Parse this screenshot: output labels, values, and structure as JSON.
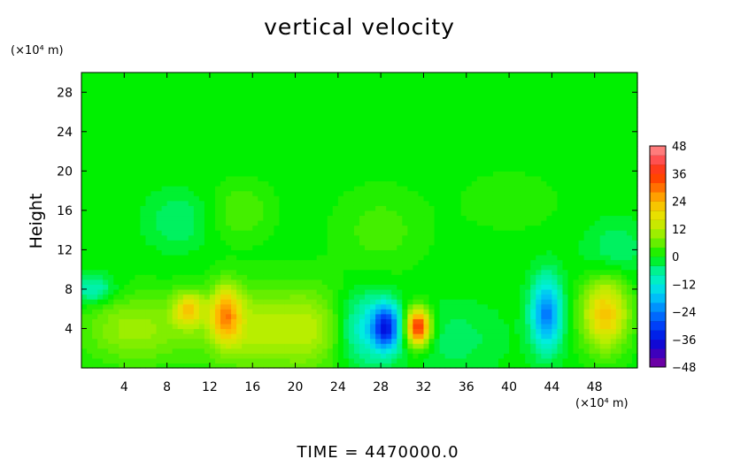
{
  "chart_data": {
    "type": "heatmap",
    "title": "vertical velocity",
    "ylabel": "Height",
    "y_unit": "(×10⁴ m)",
    "x_unit": "(×10⁴ m)",
    "footer": "TIME  =  4470000.0",
    "xlim": [
      0,
      52
    ],
    "ylim": [
      0,
      30
    ],
    "x_ticks": [
      4,
      8,
      12,
      16,
      20,
      24,
      28,
      32,
      36,
      40,
      44,
      48
    ],
    "y_ticks": [
      4,
      8,
      12,
      16,
      20,
      24,
      28
    ],
    "x_tick_labels": [
      "4",
      "8",
      "12",
      "16",
      "20",
      "24",
      "28",
      "32",
      "36",
      "40",
      "44",
      "48"
    ],
    "y_tick_labels": [
      "4",
      "8",
      "12",
      "16",
      "20",
      "24",
      "28"
    ],
    "colorbar": {
      "min": -48,
      "max": 48,
      "step": 4,
      "tick_values": [
        48,
        36,
        24,
        12,
        0,
        -12,
        -24,
        -36,
        -48
      ],
      "tick_labels": [
        "48",
        "36",
        "24",
        "12",
        "0",
        "−12",
        "−24",
        "−36",
        "−48"
      ]
    },
    "background_value": 0,
    "features": [
      {
        "x": 5,
        "y": 4,
        "sx": 3.5,
        "sy": 2.5,
        "value": 10
      },
      {
        "x": 10,
        "y": 6,
        "sx": 1.0,
        "sy": 1.2,
        "value": 18
      },
      {
        "x": 13.5,
        "y": 5.5,
        "sx": 1.0,
        "sy": 2.0,
        "value": 22
      },
      {
        "x": 17,
        "y": 4,
        "sx": 4.0,
        "sy": 3.0,
        "value": 12
      },
      {
        "x": 22,
        "y": 4,
        "sx": 2.0,
        "sy": 3.0,
        "value": 6
      },
      {
        "x": 26.5,
        "y": 4,
        "sx": 1.8,
        "sy": 2.5,
        "value": -12
      },
      {
        "x": 28.5,
        "y": 4.2,
        "sx": 0.9,
        "sy": 1.6,
        "value": -30
      },
      {
        "x": 31.5,
        "y": 4.2,
        "sx": 0.8,
        "sy": 1.3,
        "value": 38
      },
      {
        "x": 35,
        "y": 3,
        "sx": 3.0,
        "sy": 2.5,
        "value": -4
      },
      {
        "x": 43.5,
        "y": 5.5,
        "sx": 1.0,
        "sy": 2.5,
        "value": -24
      },
      {
        "x": 49,
        "y": 5.5,
        "sx": 1.5,
        "sy": 2.5,
        "value": 22
      },
      {
        "x": 1,
        "y": 8,
        "sx": 1.5,
        "sy": 1.0,
        "value": -10
      },
      {
        "x": 9,
        "y": 15,
        "sx": 2.0,
        "sy": 2.0,
        "value": -5
      },
      {
        "x": 15,
        "y": 16,
        "sx": 2.0,
        "sy": 2.0,
        "value": 5
      },
      {
        "x": 28,
        "y": 14,
        "sx": 3.0,
        "sy": 3.0,
        "value": 4
      },
      {
        "x": 40,
        "y": 17,
        "sx": 3.0,
        "sy": 2.0,
        "value": 3
      },
      {
        "x": 50,
        "y": 12,
        "sx": 2.0,
        "sy": 2.0,
        "value": -5
      }
    ],
    "colormap": [
      {
        "v": -48,
        "color": "#7b0099"
      },
      {
        "v": -44,
        "color": "#5a00b0"
      },
      {
        "v": -40,
        "color": "#2200c8"
      },
      {
        "v": -36,
        "color": "#0012e0"
      },
      {
        "v": -30,
        "color": "#0040f8"
      },
      {
        "v": -24,
        "color": "#007cff"
      },
      {
        "v": -18,
        "color": "#00bef8"
      },
      {
        "v": -12,
        "color": "#00eedd"
      },
      {
        "v": -6,
        "color": "#00f290"
      },
      {
        "v": 0,
        "color": "#00f000"
      },
      {
        "v": 6,
        "color": "#66ee00"
      },
      {
        "v": 12,
        "color": "#b8ee00"
      },
      {
        "v": 18,
        "color": "#e8e000"
      },
      {
        "v": 24,
        "color": "#ffb800"
      },
      {
        "v": 30,
        "color": "#ff7000"
      },
      {
        "v": 36,
        "color": "#ff3000"
      },
      {
        "v": 42,
        "color": "#ff5050"
      },
      {
        "v": 48,
        "color": "#ff9090"
      }
    ]
  }
}
